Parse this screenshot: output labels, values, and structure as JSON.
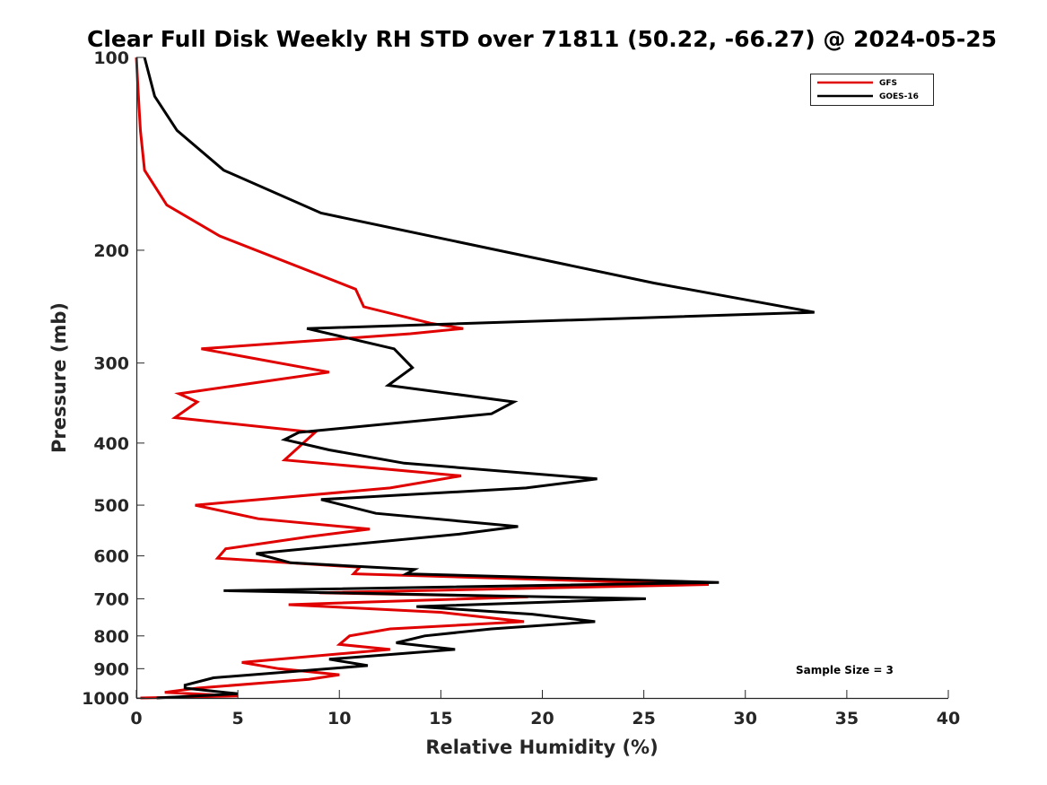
{
  "chart_data": {
    "type": "line",
    "title": "Clear Full Disk Weekly RH STD over 71811 (50.22, -66.27) @ 2024-05-25",
    "xlabel": "Relative Humidity (%)",
    "ylabel": "Pressure (mb)",
    "xlim": [
      0,
      40
    ],
    "ylim": [
      100,
      1000
    ],
    "y_scale": "log",
    "y_reversed": true,
    "grid": false,
    "legend_position": "top-right",
    "x_ticks": [
      "0",
      "5",
      "10",
      "15",
      "20",
      "25",
      "30",
      "35",
      "40"
    ],
    "y_ticks": [
      "100",
      "200",
      "300",
      "400",
      "500",
      "600",
      "700",
      "800",
      "900",
      "1000"
    ],
    "annotation": "Sample Size = 3",
    "series": [
      {
        "name": "GFS",
        "color": "#e00000",
        "points": [
          [
            0.0,
            100
          ],
          [
            0.1,
            115
          ],
          [
            0.2,
            130
          ],
          [
            0.4,
            150
          ],
          [
            1.5,
            170
          ],
          [
            4.1,
            190
          ],
          [
            10.8,
            230
          ],
          [
            11.2,
            245
          ],
          [
            14.5,
            260
          ],
          [
            16.1,
            265
          ],
          [
            13.5,
            270
          ],
          [
            3.2,
            285
          ],
          [
            9.5,
            310
          ],
          [
            2.1,
            335
          ],
          [
            3.0,
            345
          ],
          [
            1.9,
            365
          ],
          [
            8.8,
            385
          ],
          [
            7.3,
            425
          ],
          [
            16.0,
            450
          ],
          [
            12.5,
            470
          ],
          [
            2.9,
            500
          ],
          [
            6.0,
            525
          ],
          [
            11.5,
            545
          ],
          [
            8.5,
            560
          ],
          [
            4.4,
            585
          ],
          [
            4.0,
            605
          ],
          [
            11.0,
            625
          ],
          [
            10.7,
            640
          ],
          [
            28.2,
            665
          ],
          [
            9.0,
            685
          ],
          [
            19.3,
            695
          ],
          [
            7.5,
            715
          ],
          [
            15.0,
            735
          ],
          [
            19.1,
            760
          ],
          [
            12.5,
            780
          ],
          [
            10.5,
            800
          ],
          [
            10.0,
            825
          ],
          [
            12.5,
            840
          ],
          [
            5.2,
            880
          ],
          [
            7.0,
            900
          ],
          [
            10.0,
            920
          ],
          [
            8.5,
            935
          ],
          [
            3.0,
            965
          ],
          [
            1.4,
            980
          ],
          [
            5.0,
            993
          ],
          [
            0.2,
            1000
          ]
        ]
      },
      {
        "name": "GOES-16",
        "color": "#000000",
        "points": [
          [
            0.4,
            100
          ],
          [
            0.9,
            115
          ],
          [
            2.0,
            130
          ],
          [
            4.3,
            150
          ],
          [
            9.1,
            175
          ],
          [
            25.5,
            225
          ],
          [
            33.4,
            250
          ],
          [
            8.4,
            265
          ],
          [
            12.7,
            285
          ],
          [
            13.6,
            305
          ],
          [
            12.4,
            325
          ],
          [
            18.6,
            345
          ],
          [
            17.5,
            360
          ],
          [
            8.0,
            385
          ],
          [
            7.3,
            395
          ],
          [
            9.5,
            410
          ],
          [
            13.2,
            430
          ],
          [
            22.7,
            455
          ],
          [
            19.2,
            470
          ],
          [
            9.1,
            490
          ],
          [
            11.8,
            515
          ],
          [
            18.8,
            540
          ],
          [
            15.9,
            555
          ],
          [
            5.9,
            595
          ],
          [
            7.6,
            615
          ],
          [
            13.7,
            630
          ],
          [
            13.3,
            640
          ],
          [
            28.7,
            660
          ],
          [
            4.3,
            680
          ],
          [
            25.1,
            700
          ],
          [
            13.8,
            720
          ],
          [
            19.5,
            740
          ],
          [
            22.6,
            760
          ],
          [
            17.5,
            780
          ],
          [
            14.2,
            800
          ],
          [
            12.8,
            820
          ],
          [
            15.7,
            840
          ],
          [
            9.5,
            870
          ],
          [
            11.4,
            890
          ],
          [
            3.8,
            930
          ],
          [
            2.4,
            955
          ],
          [
            2.4,
            965
          ],
          [
            5.0,
            985
          ],
          [
            1.0,
            1000
          ]
        ]
      }
    ]
  }
}
